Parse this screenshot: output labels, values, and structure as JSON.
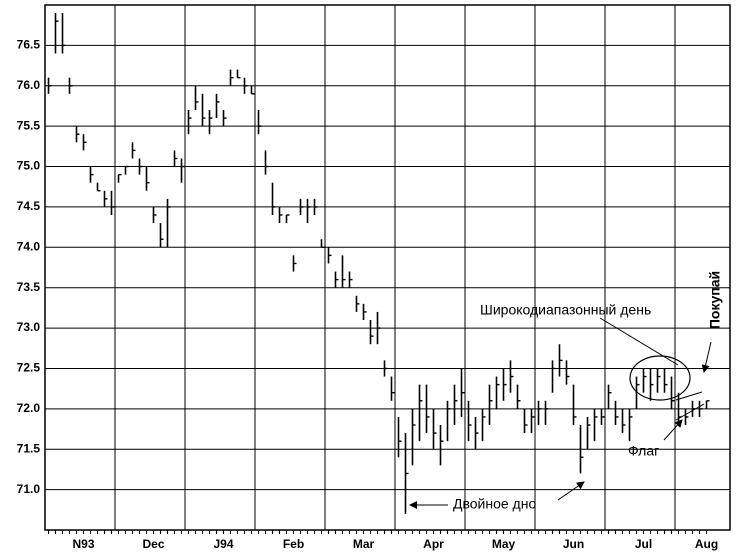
{
  "chart_data": {
    "type": "ohlc",
    "categories": [
      null,
      null,
      null,
      null,
      null,
      "N93",
      null,
      null,
      null,
      null,
      null,
      null,
      null,
      null,
      null,
      "Dec",
      null,
      null,
      null,
      null,
      null,
      null,
      null,
      null,
      null,
      "J94",
      null,
      null,
      null,
      null,
      null,
      null,
      null,
      null,
      null,
      "Feb",
      null,
      null,
      null,
      null,
      null,
      null,
      null,
      null,
      null,
      "Mar",
      null,
      null,
      null,
      null,
      null,
      null,
      null,
      null,
      null,
      "Apr",
      null,
      null,
      null,
      null,
      null,
      null,
      null,
      null,
      null,
      "May",
      null,
      null,
      null,
      null,
      null,
      null,
      null,
      null,
      null,
      "Jun",
      null,
      null,
      null,
      null,
      null,
      null,
      null,
      null,
      null,
      "Jul",
      null,
      null,
      null,
      null,
      null,
      null,
      null,
      null,
      "Aug"
    ],
    "series": [
      {
        "color": "#000000",
        "high": [
          76.1,
          76.9,
          76.9,
          76.1,
          75.5,
          75.4,
          75.0,
          74.8,
          74.7,
          74.7,
          74.9,
          75.0,
          75.3,
          75.1,
          75.0,
          74.5,
          74.3,
          74.6,
          75.2,
          75.1,
          75.7,
          76.0,
          75.9,
          75.7,
          75.9,
          75.7,
          76.2,
          76.2,
          76.1,
          76.0,
          75.7,
          75.2,
          74.8,
          74.5,
          74.4,
          73.9,
          74.6,
          74.6,
          74.6,
          74.1,
          74.0,
          73.7,
          73.9,
          73.7,
          73.4,
          73.3,
          73.1,
          73.2,
          72.6,
          72.4,
          71.9,
          71.7,
          72.0,
          72.3,
          72.3,
          72.0,
          71.8,
          72.1,
          72.3,
          72.5,
          72.1,
          71.9,
          72.0,
          72.3,
          72.4,
          72.5,
          72.6,
          72.3,
          72.0,
          72.0,
          72.1,
          72.1,
          72.6,
          72.8,
          72.6,
          72.3,
          71.8,
          71.9,
          72.0,
          72.0,
          72.3,
          72.1,
          72.0,
          72.0,
          72.4,
          72.5,
          72.5,
          72.5,
          72.5,
          72.4,
          72.2,
          72.0,
          72.1,
          72.1,
          72.1
        ],
        "low": [
          75.9,
          76.4,
          76.4,
          75.9,
          75.3,
          75.2,
          74.8,
          74.7,
          74.5,
          74.4,
          74.8,
          74.9,
          75.1,
          74.9,
          74.7,
          74.3,
          74.0,
          74.0,
          75.0,
          74.8,
          75.4,
          75.7,
          75.5,
          75.4,
          75.6,
          75.5,
          76.0,
          76.1,
          75.9,
          75.9,
          75.4,
          74.9,
          74.4,
          74.3,
          74.3,
          73.7,
          74.4,
          74.3,
          74.4,
          74.0,
          73.8,
          73.5,
          73.5,
          73.5,
          73.2,
          73.1,
          72.8,
          72.8,
          72.4,
          72.1,
          71.4,
          70.7,
          71.3,
          71.6,
          71.7,
          71.5,
          71.3,
          71.6,
          71.8,
          71.9,
          71.6,
          71.5,
          71.6,
          71.8,
          72.0,
          72.1,
          72.2,
          72.0,
          71.7,
          71.7,
          71.8,
          71.8,
          72.2,
          72.4,
          72.3,
          71.8,
          71.2,
          71.5,
          71.6,
          71.8,
          72.0,
          71.8,
          71.7,
          71.6,
          72.0,
          72.2,
          72.1,
          72.2,
          72.2,
          72.0,
          71.8,
          71.8,
          71.9,
          71.9,
          72.0
        ],
        "close": [
          76.0,
          76.8,
          76.5,
          76.0,
          75.4,
          75.3,
          74.9,
          74.7,
          74.6,
          74.5,
          74.9,
          75.0,
          75.2,
          75.0,
          74.8,
          74.4,
          74.1,
          74.5,
          75.1,
          75.0,
          75.6,
          75.8,
          75.6,
          75.6,
          75.8,
          75.6,
          76.1,
          76.1,
          76.0,
          75.9,
          75.5,
          75.0,
          74.5,
          74.4,
          74.4,
          73.8,
          74.5,
          74.5,
          74.5,
          74.0,
          73.9,
          73.6,
          73.6,
          73.6,
          73.3,
          73.2,
          72.9,
          73.0,
          72.5,
          72.2,
          71.6,
          71.2,
          71.8,
          72.1,
          71.9,
          71.7,
          71.6,
          72.0,
          72.1,
          72.2,
          71.8,
          71.7,
          71.9,
          72.1,
          72.3,
          72.3,
          72.4,
          72.1,
          71.8,
          71.9,
          72.0,
          72.0,
          72.5,
          72.6,
          72.4,
          71.9,
          71.4,
          71.8,
          71.9,
          71.9,
          72.2,
          71.9,
          71.8,
          71.9,
          72.3,
          72.4,
          72.3,
          72.4,
          72.3,
          72.1,
          71.9,
          71.9,
          72.0,
          72.0,
          72.1
        ]
      }
    ],
    "ylim": [
      70.5,
      77.0
    ],
    "yticks": [
      {
        "value": 71,
        "label": "71.0"
      },
      71.5,
      {
        "value": 72,
        "label": "72.0"
      },
      72.5,
      {
        "value": 73,
        "label": "73.0"
      },
      73.5,
      {
        "value": 74,
        "label": "74.0"
      },
      74.5,
      {
        "value": 75,
        "label": "75.0"
      },
      75.5,
      {
        "value": 76,
        "label": "76.0"
      },
      76.5
    ],
    "grid": true,
    "annotations": [
      "Широкодиапазонный день",
      "Покупай",
      "Двойное дно",
      "Флаг"
    ]
  }
}
